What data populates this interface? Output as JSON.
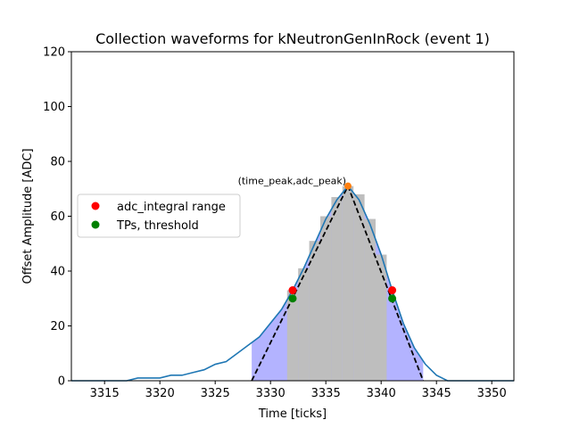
{
  "chart_data": {
    "type": "line",
    "title": "Collection waveforms for kNeutronGenInRock (event 1)",
    "xlabel": "Time [ticks]",
    "ylabel": "Offset Amplitude [ADC]",
    "xlim": [
      3312,
      3352
    ],
    "ylim": [
      0,
      120
    ],
    "xticks": [
      3315,
      3320,
      3325,
      3330,
      3335,
      3340,
      3345,
      3350
    ],
    "yticks": [
      0,
      20,
      40,
      60,
      80,
      100,
      120
    ],
    "grid": false,
    "legend_position": "center-left",
    "colors": {
      "waveform": "#1f77b4",
      "bars": "#bebebe",
      "shade": "#b3b3ff",
      "triangle": "#000000",
      "adc_integral": "#ff0000",
      "tps": "#008000",
      "peak": "#ff7f0e"
    },
    "waveform": {
      "x": [
        3312,
        3313,
        3314,
        3315,
        3316,
        3317,
        3318,
        3319,
        3320,
        3321,
        3322,
        3323,
        3324,
        3325,
        3326,
        3327,
        3328,
        3329,
        3330,
        3331,
        3332,
        3333,
        3334,
        3335,
        3336,
        3337,
        3338,
        3339,
        3340,
        3341,
        3342,
        3343,
        3344,
        3345,
        3346,
        3347,
        3348,
        3349,
        3350,
        3351,
        3352
      ],
      "y": [
        0,
        0,
        0,
        0,
        0,
        0,
        1,
        1,
        1,
        2,
        2,
        3,
        4,
        6,
        7,
        10,
        13,
        16,
        21,
        26,
        33,
        41,
        50,
        59,
        66,
        71,
        66,
        57,
        46,
        33,
        21,
        12,
        6,
        2,
        0,
        0,
        0,
        0,
        0,
        0,
        0
      ]
    },
    "bars": {
      "x": [
        3332,
        3333,
        3334,
        3335,
        3336,
        3337,
        3338,
        3339,
        3340
      ],
      "y": [
        33,
        41,
        51,
        60,
        67,
        71,
        68,
        59,
        46
      ],
      "width": 1
    },
    "triangle": {
      "x": [
        3328.3,
        3337,
        3343.8
      ],
      "y": [
        0,
        71,
        0
      ]
    },
    "adc_integral_range": {
      "label": "adc_integral range",
      "x": [
        3332,
        3341
      ],
      "y": [
        33,
        33
      ]
    },
    "tps_threshold": {
      "label": "TPs, threshold",
      "x": [
        3332,
        3341
      ],
      "y": [
        30,
        30
      ]
    },
    "peak": {
      "x": 3337,
      "y": 71,
      "annotation": "(time_peak,adc_peak)"
    }
  }
}
